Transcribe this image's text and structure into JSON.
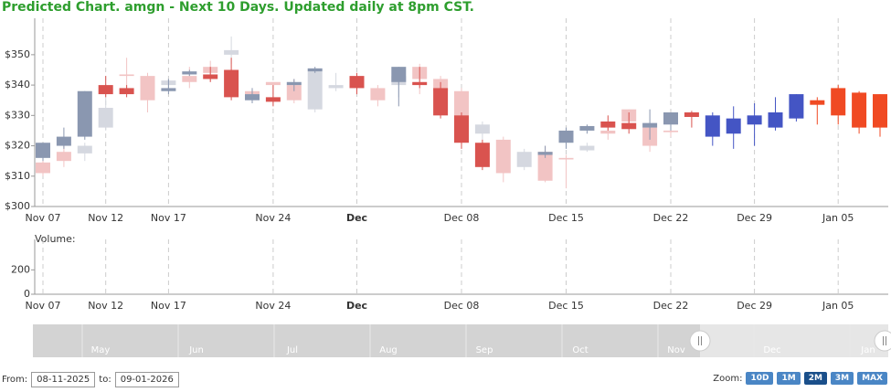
{
  "title": "Predicted Chart. amgn - Next 10 Days. Updated daily at 8pm CST.",
  "chart_data": {
    "type": "candlestick",
    "categories": [
      "Nov 07",
      null,
      null,
      "Nov 12",
      null,
      null,
      "Nov 17",
      null,
      null,
      null,
      null,
      "Nov 24",
      null,
      null,
      null,
      "Dec",
      null,
      null,
      null,
      null,
      "Dec 08",
      null,
      null,
      null,
      null,
      "Dec 15",
      null,
      null,
      null,
      null,
      "Dec 22",
      null,
      null,
      null,
      "Dec 29",
      null,
      null,
      null,
      "Jan 05",
      null,
      null
    ],
    "ylim": [
      300,
      362
    ],
    "yticks": [
      {
        "value": 300,
        "label": "$300"
      },
      {
        "value": 310,
        "label": "$310"
      },
      {
        "value": 320,
        "label": "$320"
      },
      {
        "value": 330,
        "label": "$330"
      },
      {
        "value": 340,
        "label": "$340"
      },
      {
        "value": 350,
        "label": "$350"
      }
    ],
    "grid": true,
    "series": [
      {
        "color_up": "#d5d8e0",
        "color_down": "#f2c4c4",
        "open": [
          314.5,
          318,
          317.5,
          326,
          343.5,
          343,
          340,
          343,
          346,
          350,
          338,
          341,
          340,
          332,
          339,
          null,
          339,
          340,
          346,
          342,
          338,
          324,
          322,
          313,
          318,
          316,
          318.5,
          325,
          332,
          326,
          325,
          null,
          null,
          null,
          null,
          null,
          null,
          null,
          null,
          null,
          null
        ],
        "high": [
          316,
          320,
          321,
          336,
          349,
          344,
          342,
          346,
          348,
          356,
          339,
          341,
          342,
          345,
          344,
          null,
          340,
          345,
          347,
          343,
          339,
          328,
          323,
          319,
          320,
          317,
          321,
          326,
          332,
          327,
          326,
          null,
          null,
          null,
          null,
          null,
          null,
          null,
          null,
          null,
          null
        ],
        "low": [
          310,
          313,
          315,
          325,
          337,
          331,
          338,
          339,
          341,
          347,
          334,
          337,
          334,
          331,
          338,
          null,
          333,
          336,
          337,
          330,
          326,
          322,
          308,
          312,
          308,
          306,
          318,
          322,
          327,
          318,
          323,
          null,
          null,
          null,
          null,
          null,
          null,
          null,
          null,
          null,
          null
        ],
        "close": [
          311,
          315,
          320,
          332.5,
          343,
          335,
          341.5,
          341,
          344,
          351.5,
          337,
          340,
          335,
          344.5,
          340,
          null,
          335,
          343,
          342,
          338,
          328,
          327,
          311,
          318,
          308.5,
          315.5,
          320,
          324,
          328,
          320,
          324.5,
          null,
          null,
          null,
          null,
          null,
          null,
          null,
          null,
          null,
          null
        ]
      },
      {
        "color_up": "#8a97b0",
        "color_down": "#d9534f",
        "open": [
          316,
          320,
          323,
          340,
          339,
          null,
          338,
          343.5,
          343.5,
          345,
          335,
          336,
          340,
          344.5,
          null,
          343,
          null,
          341,
          341,
          339,
          330,
          321,
          null,
          null,
          317,
          321,
          325,
          328,
          327.5,
          326,
          327,
          331,
          null,
          null,
          null,
          null,
          null,
          null,
          null,
          null,
          null
        ],
        "high": [
          321,
          326,
          338,
          343,
          340,
          null,
          342,
          345,
          346,
          349,
          339,
          340,
          342,
          346,
          null,
          344,
          null,
          346,
          346,
          341,
          331,
          322,
          null,
          null,
          320,
          326,
          327,
          330,
          331,
          332,
          331,
          331.5,
          null,
          null,
          null,
          null,
          null,
          null,
          null,
          null,
          null
        ],
        "low": [
          315,
          319,
          322,
          336,
          336,
          null,
          337,
          343,
          341,
          335,
          334,
          333,
          338,
          344,
          null,
          337,
          null,
          333,
          339,
          329,
          319,
          312,
          null,
          null,
          316,
          319,
          324,
          325,
          324,
          322,
          325,
          326,
          null,
          null,
          null,
          null,
          null,
          null,
          null,
          null,
          null
        ],
        "close": [
          321,
          323,
          338,
          337,
          337,
          null,
          339,
          344.5,
          342,
          336,
          337,
          334.5,
          341,
          345.5,
          null,
          339,
          null,
          346,
          340,
          330,
          321,
          313,
          null,
          null,
          318,
          325,
          326.5,
          326,
          325.5,
          327.5,
          331,
          329.5,
          null,
          null,
          null,
          null,
          null,
          null,
          null,
          null,
          null
        ]
      },
      {
        "color_up": "#4455c4",
        "color_down": "#f04a23",
        "open": [
          null,
          null,
          null,
          null,
          null,
          null,
          null,
          null,
          null,
          null,
          null,
          null,
          null,
          null,
          null,
          null,
          null,
          null,
          null,
          null,
          null,
          null,
          null,
          null,
          null,
          null,
          null,
          null,
          null,
          null,
          null,
          null,
          323,
          324,
          327,
          326,
          329,
          335,
          339,
          337.5,
          337
        ],
        "high": [
          null,
          null,
          null,
          null,
          null,
          null,
          null,
          null,
          null,
          null,
          null,
          null,
          null,
          null,
          null,
          null,
          null,
          null,
          null,
          null,
          null,
          null,
          null,
          null,
          null,
          null,
          null,
          null,
          null,
          null,
          null,
          null,
          331,
          333,
          334,
          336,
          337,
          336,
          340,
          338,
          337
        ],
        "low": [
          null,
          null,
          null,
          null,
          null,
          null,
          null,
          null,
          null,
          null,
          null,
          null,
          null,
          null,
          null,
          null,
          null,
          null,
          null,
          null,
          null,
          null,
          null,
          null,
          null,
          null,
          null,
          null,
          null,
          null,
          null,
          null,
          320,
          319,
          320,
          325,
          328,
          327,
          327,
          324,
          323
        ],
        "close": [
          null,
          null,
          null,
          null,
          null,
          null,
          null,
          null,
          null,
          null,
          null,
          null,
          null,
          null,
          null,
          null,
          null,
          null,
          null,
          null,
          null,
          null,
          null,
          null,
          null,
          null,
          null,
          null,
          null,
          null,
          null,
          null,
          330,
          329,
          330,
          331,
          337,
          333.5,
          330,
          326,
          326
        ]
      }
    ],
    "volume": {
      "label": "Volume:",
      "ylim": [
        0,
        450
      ],
      "yticks": [
        0,
        200
      ]
    }
  },
  "navigator": {
    "labels": [
      "May",
      "Jun",
      "Jul",
      "Aug",
      "Sep",
      "Oct",
      "Nov",
      "Dec",
      "Jan"
    ]
  },
  "controls": {
    "from_label": "From:",
    "from": "08-11-2025",
    "to_label": "to:",
    "to": "09-01-2026",
    "zoom_label": "Zoom:",
    "zoom": [
      "10D",
      "1M",
      "2M",
      "3M",
      "MAX"
    ],
    "zoom_active": 2
  }
}
